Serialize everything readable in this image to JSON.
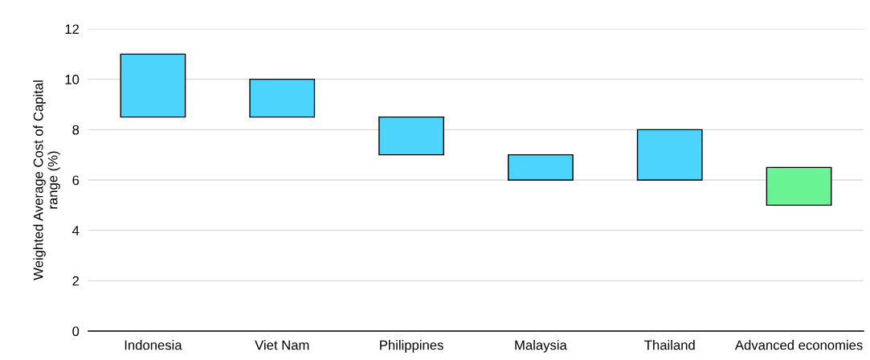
{
  "chart_data": {
    "type": "bar",
    "ylabel": "Weighted Average Cost of Capital\nrange (%)",
    "categories": [
      "Indonesia",
      "Viet Nam",
      "Philippines",
      "Malaysia",
      "Thailand",
      "Advanced economies"
    ],
    "base": [
      8.5,
      8.5,
      7,
      6,
      6,
      5
    ],
    "values": [
      2.5,
      1.5,
      1.5,
      1,
      2,
      1.5
    ],
    "colors": [
      "#4dd4fc",
      "#4dd4fc",
      "#4dd4fc",
      "#4dd4fc",
      "#4dd4fc",
      "#6af393"
    ],
    "ylim": [
      0,
      12
    ],
    "yticks": [
      0,
      2,
      4,
      6,
      8,
      10,
      12
    ],
    "grid": "y",
    "legend": false
  }
}
